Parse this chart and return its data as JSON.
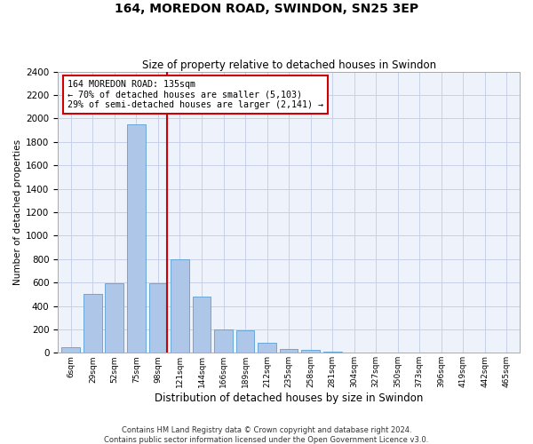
{
  "title": "164, MOREDON ROAD, SWINDON, SN25 3EP",
  "subtitle": "Size of property relative to detached houses in Swindon",
  "xlabel": "Distribution of detached houses by size in Swindon",
  "ylabel": "Number of detached properties",
  "footer_line1": "Contains HM Land Registry data © Crown copyright and database right 2024.",
  "footer_line2": "Contains public sector information licensed under the Open Government Licence v3.0.",
  "annotation_title": "164 MOREDON ROAD: 135sqm",
  "annotation_line1": "← 70% of detached houses are smaller (5,103)",
  "annotation_line2": "29% of semi-detached houses are larger (2,141) →",
  "property_line_x": 4,
  "bar_categories": [
    "6sqm",
    "29sqm",
    "52sqm",
    "75sqm",
    "98sqm",
    "121sqm",
    "144sqm",
    "166sqm",
    "189sqm",
    "212sqm",
    "235sqm",
    "258sqm",
    "281sqm",
    "304sqm",
    "327sqm",
    "350sqm",
    "373sqm",
    "396sqm",
    "419sqm",
    "442sqm",
    "465sqm"
  ],
  "bar_heights": [
    50,
    500,
    590,
    1950,
    590,
    800,
    480,
    200,
    190,
    85,
    30,
    25,
    10,
    5,
    5,
    5,
    2,
    2,
    2,
    2,
    0
  ],
  "bar_color": "#aec6e8",
  "bar_edge_color": "#5a9fd4",
  "line_color": "#cc0000",
  "annotation_box_color": "#cc0000",
  "bg_color": "#eef2fb",
  "grid_color": "#c8d0e8",
  "ylim": [
    0,
    2400
  ],
  "yticks": [
    0,
    200,
    400,
    600,
    800,
    1000,
    1200,
    1400,
    1600,
    1800,
    2000,
    2200,
    2400
  ],
  "title_fontsize": 10,
  "subtitle_fontsize": 8.5,
  "ylabel_fontsize": 7.5,
  "xlabel_fontsize": 8.5
}
